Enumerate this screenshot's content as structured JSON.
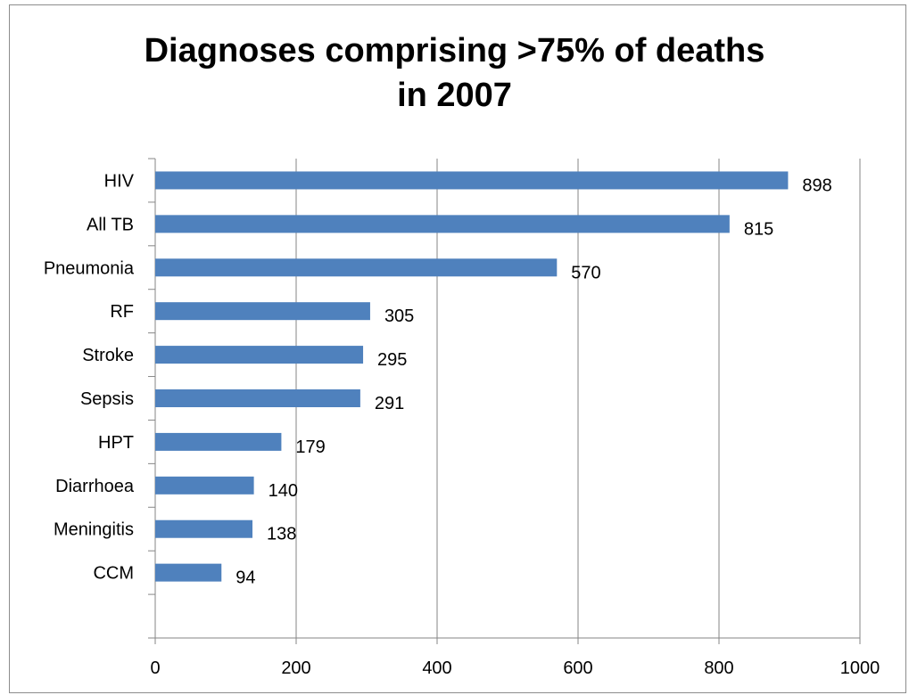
{
  "chart_data": {
    "type": "bar",
    "orientation": "horizontal",
    "title_lines": [
      "Diagnoses comprising >75% of deaths",
      "in 2007"
    ],
    "categories": [
      "HIV",
      "All TB",
      "Pneumonia",
      "RF",
      "Stroke",
      "Sepsis",
      "HPT",
      "Diarrhoea",
      "Meningitis",
      "CCM"
    ],
    "values": [
      898,
      815,
      570,
      305,
      295,
      291,
      179,
      140,
      138,
      94
    ],
    "xlim": [
      0,
      1000
    ],
    "xticks": [
      0,
      200,
      400,
      600,
      800,
      1000
    ],
    "grid": "vertical",
    "legend": "none",
    "bar_color": "#4f81bd",
    "grid_color": "#868686",
    "axis_color": "#868686"
  }
}
